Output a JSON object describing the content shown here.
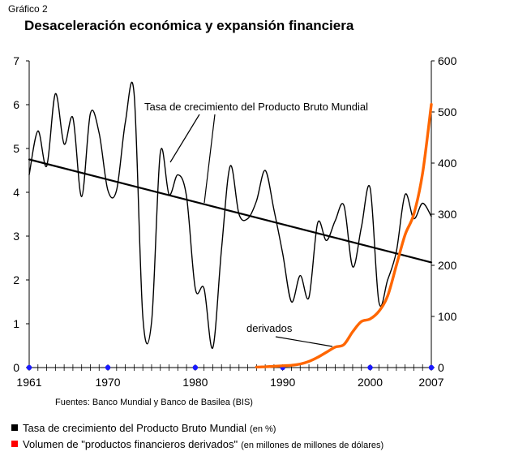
{
  "header": {
    "label": "Gráfico 2",
    "title": "Desaceleración económica y expansión financiera"
  },
  "sources": "Fuentes: Banco Mundial y Banco de Basilea (BIS)",
  "legend": [
    {
      "label": "Tasa de crecimiento del Producto Bruto Mundial",
      "unit": "(en %)",
      "color": "#000000"
    },
    {
      "label": "Volumen de \"productos financieros derivados\"",
      "unit": "(en millones de millones de dólares)",
      "color": "#ff0000"
    }
  ],
  "chart_data": {
    "type": "line",
    "x_ticks": [
      "1961",
      "1970",
      "1980",
      "1990",
      "2000",
      "2007"
    ],
    "x_tick_values": [
      1961,
      1970,
      1980,
      1990,
      2000,
      2007
    ],
    "xlim": [
      1961,
      2007
    ],
    "y_left": {
      "ticks": [
        "0",
        "1",
        "2",
        "3",
        "4",
        "5",
        "6",
        "7"
      ],
      "lim": [
        0,
        7
      ]
    },
    "y_right": {
      "ticks": [
        "0",
        "100",
        "200",
        "300",
        "400",
        "500",
        "600"
      ],
      "lim": [
        0,
        600
      ]
    },
    "annotations": [
      {
        "text": "Tasa de crecimiento del Producto Bruto Mundial"
      },
      {
        "text": "derivados"
      }
    ],
    "series": [
      {
        "axis": "left",
        "color": "#000000",
        "x": [
          1961,
          1962,
          1963,
          1964,
          1965,
          1966,
          1967,
          1968,
          1969,
          1970,
          1971,
          1972,
          1973,
          1974,
          1975,
          1976,
          1977,
          1978,
          1979,
          1980,
          1981,
          1982,
          1983,
          1984,
          1985,
          1986,
          1987,
          1988,
          1989,
          1990,
          1991,
          1992,
          1993,
          1994,
          1995,
          1996,
          1997,
          1998,
          1999,
          2000,
          2001,
          2002,
          2003,
          2004,
          2005,
          2006,
          2007
        ],
        "values": [
          4.4,
          5.4,
          4.6,
          6.25,
          5.1,
          5.7,
          3.9,
          5.8,
          5.35,
          4.05,
          4.05,
          5.6,
          6.25,
          1.15,
          1.05,
          4.9,
          3.95,
          4.4,
          3.9,
          1.8,
          1.8,
          0.45,
          2.7,
          4.6,
          3.5,
          3.4,
          3.8,
          4.5,
          3.6,
          2.6,
          1.5,
          2.1,
          1.6,
          3.3,
          2.9,
          3.35,
          3.7,
          2.3,
          3.2,
          4.1,
          1.5,
          2.0,
          2.65,
          3.95,
          3.4,
          3.75,
          3.45
        ]
      },
      {
        "axis": "left",
        "color": "#000000",
        "x": [
          1961,
          2007
        ],
        "values": [
          4.75,
          2.4
        ]
      },
      {
        "name": "derivados",
        "axis": "right",
        "color": "#ff6600",
        "x": [
          1987,
          1988,
          1989,
          1990,
          1991,
          1992,
          1993,
          1994,
          1995,
          1996,
          1997,
          1998,
          1999,
          2000,
          2001,
          2002,
          2003,
          2004,
          2005,
          2006,
          2007
        ],
        "values": [
          0.9,
          1.5,
          2.5,
          3.5,
          4.5,
          7,
          12,
          20,
          30,
          40,
          45,
          70,
          90,
          95,
          110,
          140,
          200,
          260,
          300,
          380,
          515
        ]
      }
    ]
  }
}
